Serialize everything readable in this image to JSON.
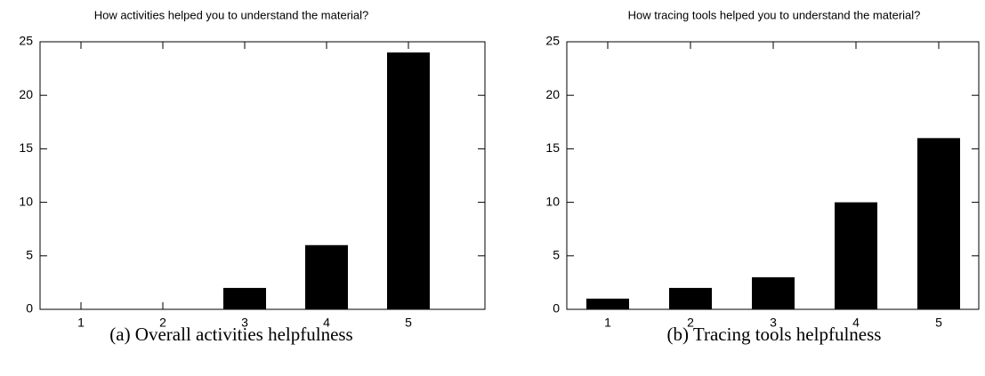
{
  "chart_data": [
    {
      "type": "bar",
      "title": "How activities helped you to understand the material?",
      "caption": "(a) Overall activities helpfulness",
      "categories": [
        "1",
        "2",
        "3",
        "4",
        "5"
      ],
      "values": [
        0,
        0,
        2,
        6,
        24
      ],
      "color": "#000000",
      "ylim": [
        0,
        25
      ],
      "yticks": [
        0,
        5,
        10,
        15,
        20,
        25
      ]
    },
    {
      "type": "bar",
      "title": "How tracing tools helped you to understand the material?",
      "caption": "(b) Tracing tools helpfulness",
      "categories": [
        "1",
        "2",
        "3",
        "4",
        "5"
      ],
      "values": [
        1,
        2,
        3,
        10,
        16
      ],
      "color": "#000000",
      "ylim": [
        0,
        25
      ],
      "yticks": [
        0,
        5,
        10,
        15,
        20,
        25
      ]
    }
  ]
}
